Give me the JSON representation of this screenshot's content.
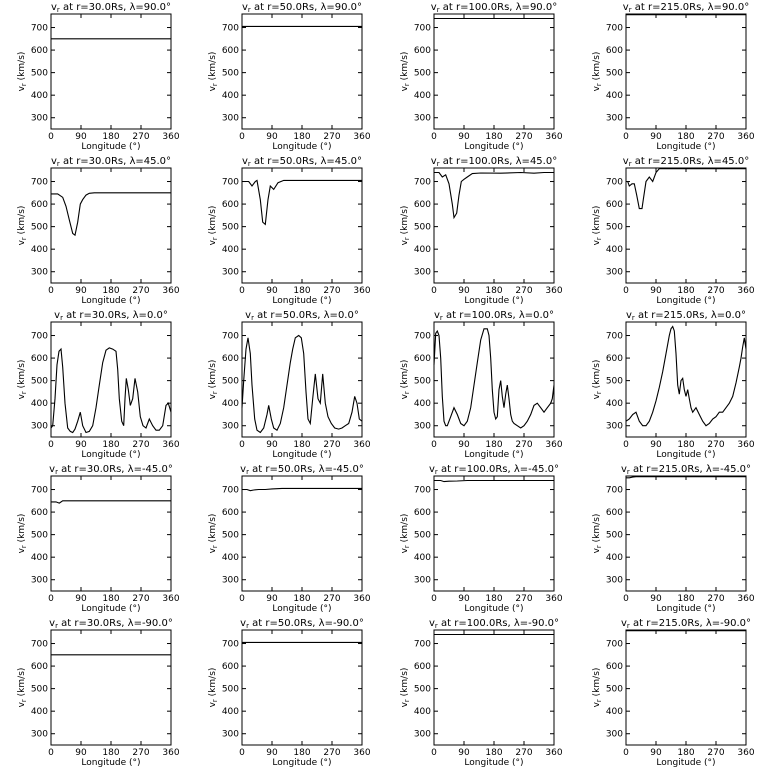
{
  "chart_data": {
    "type": "line",
    "layout": "grid",
    "xlabel": "Longitude (°)",
    "ylabel_prefix": "v",
    "ylabel_sub": "r",
    "ylabel_suffix": " (km/s)",
    "xlim": [
      0,
      360
    ],
    "ylim": [
      250,
      760
    ],
    "xticks": [
      0,
      90,
      180,
      270,
      360
    ],
    "yticks": [
      300,
      400,
      500,
      600,
      700
    ],
    "columns": [
      {
        "title_suffix": " at r=30.0Rs, "
      },
      {
        "title_suffix": " at r=50.0Rs, "
      },
      {
        "title_suffix": " at r=100.0Rs, "
      },
      {
        "title_suffix": " at r=215.0Rs, "
      }
    ],
    "rows": [
      {
        "title_lat": "λ=90.0°"
      },
      {
        "title_lat": "λ=45.0°"
      },
      {
        "title_lat": "λ=0.0°"
      },
      {
        "title_lat": "λ=-45.0°"
      },
      {
        "title_lat": "λ=-90.0°"
      }
    ],
    "panels": [
      [
        {
          "x": [
            0,
            360
          ],
          "y": [
            650,
            650
          ]
        },
        {
          "x": [
            0,
            360
          ],
          "y": [
            705,
            705
          ]
        },
        {
          "x": [
            0,
            360
          ],
          "y": [
            740,
            740
          ]
        },
        {
          "x": [
            0,
            360
          ],
          "y": [
            757,
            757
          ]
        }
      ],
      [
        {
          "x": [
            0,
            20,
            35,
            45,
            55,
            65,
            72,
            80,
            88,
            95,
            105,
            115,
            130,
            360
          ],
          "y": [
            645,
            645,
            630,
            590,
            530,
            470,
            462,
            520,
            600,
            620,
            640,
            648,
            650,
            650
          ]
        },
        {
          "x": [
            0,
            20,
            30,
            40,
            45,
            55,
            62,
            70,
            78,
            85,
            95,
            108,
            125,
            360
          ],
          "y": [
            700,
            700,
            680,
            700,
            705,
            620,
            520,
            510,
            620,
            680,
            665,
            695,
            705,
            705
          ]
        },
        {
          "x": [
            0,
            15,
            25,
            35,
            45,
            55,
            60,
            68,
            75,
            82,
            90,
            100,
            115,
            140,
            200,
            260,
            300,
            330,
            360
          ],
          "y": [
            740,
            740,
            720,
            730,
            690,
            600,
            540,
            560,
            640,
            700,
            710,
            720,
            735,
            738,
            737,
            740,
            737,
            740,
            740
          ]
        },
        {
          "x": [
            0,
            5,
            10,
            18,
            25,
            32,
            40,
            48,
            52,
            60,
            70,
            80,
            90,
            100,
            110,
            360
          ],
          "y": [
            700,
            700,
            680,
            690,
            690,
            640,
            580,
            580,
            620,
            700,
            720,
            700,
            740,
            757,
            757,
            757
          ]
        }
      ],
      [
        {
          "x": [
            0,
            5,
            12,
            18,
            24,
            30,
            35,
            42,
            50,
            58,
            65,
            72,
            80,
            88,
            95,
            105,
            115,
            125,
            135,
            145,
            155,
            165,
            175,
            185,
            195,
            200,
            205,
            212,
            218,
            222,
            226,
            232,
            238,
            245,
            252,
            260,
            268,
            276,
            285,
            295,
            305,
            315,
            325,
            335,
            345,
            352,
            358,
            360
          ],
          "y": [
            290,
            300,
            420,
            570,
            630,
            640,
            560,
            400,
            290,
            275,
            270,
            285,
            320,
            360,
            300,
            270,
            275,
            300,
            380,
            480,
            580,
            635,
            645,
            640,
            630,
            550,
            420,
            320,
            300,
            420,
            510,
            460,
            390,
            420,
            510,
            450,
            340,
            300,
            290,
            330,
            300,
            280,
            280,
            300,
            390,
            400,
            370,
            360
          ]
        },
        {
          "x": [
            0,
            5,
            12,
            18,
            25,
            30,
            38,
            45,
            55,
            65,
            75,
            80,
            88,
            95,
            105,
            115,
            125,
            135,
            145,
            152,
            160,
            170,
            178,
            185,
            192,
            198,
            205,
            212,
            220,
            228,
            235,
            242,
            250,
            258,
            268,
            278,
            290,
            300,
            310,
            320,
            330,
            338,
            345,
            352,
            360
          ],
          "y": [
            380,
            500,
            640,
            690,
            620,
            480,
            330,
            280,
            270,
            290,
            350,
            390,
            330,
            290,
            280,
            310,
            380,
            480,
            580,
            640,
            690,
            700,
            690,
            620,
            450,
            330,
            310,
            420,
            530,
            420,
            400,
            530,
            400,
            340,
            310,
            290,
            285,
            290,
            300,
            310,
            360,
            430,
            400,
            330,
            320
          ]
        },
        {
          "x": [
            0,
            5,
            10,
            15,
            20,
            25,
            30,
            35,
            40,
            50,
            60,
            70,
            80,
            90,
            100,
            110,
            120,
            130,
            140,
            150,
            160,
            165,
            170,
            175,
            180,
            185,
            190,
            195,
            200,
            205,
            210,
            215,
            220,
            225,
            230,
            235,
            240,
            250,
            260,
            270,
            280,
            290,
            300,
            310,
            320,
            330,
            340,
            350,
            355,
            360
          ],
          "y": [
            570,
            710,
            720,
            700,
            600,
            430,
            320,
            300,
            300,
            340,
            380,
            350,
            310,
            300,
            320,
            380,
            480,
            580,
            680,
            730,
            730,
            700,
            600,
            460,
            360,
            330,
            340,
            460,
            500,
            430,
            380,
            440,
            480,
            420,
            350,
            320,
            310,
            300,
            290,
            300,
            320,
            350,
            390,
            400,
            380,
            360,
            380,
            400,
            420,
            480
          ]
        },
        {
          "x": [
            0,
            10,
            20,
            30,
            40,
            50,
            60,
            70,
            80,
            90,
            100,
            110,
            120,
            130,
            135,
            140,
            145,
            150,
            155,
            160,
            165,
            170,
            175,
            180,
            185,
            190,
            195,
            200,
            210,
            220,
            230,
            240,
            250,
            260,
            270,
            280,
            290,
            300,
            310,
            320,
            330,
            340,
            345,
            350,
            355,
            360
          ],
          "y": [
            320,
            330,
            350,
            360,
            320,
            300,
            300,
            320,
            360,
            410,
            470,
            540,
            620,
            700,
            730,
            740,
            720,
            620,
            480,
            440,
            500,
            510,
            460,
            430,
            460,
            420,
            380,
            360,
            380,
            350,
            320,
            300,
            310,
            330,
            340,
            360,
            360,
            380,
            400,
            430,
            490,
            560,
            600,
            650,
            690,
            640
          ]
        }
      ],
      [
        {
          "x": [
            0,
            15,
            25,
            35,
            360
          ],
          "y": [
            645,
            645,
            640,
            650,
            650
          ]
        },
        {
          "x": [
            0,
            15,
            25,
            35,
            50,
            70,
            90,
            120,
            360
          ],
          "y": [
            700,
            700,
            695,
            698,
            700,
            700,
            703,
            705,
            705
          ]
        },
        {
          "x": [
            0,
            20,
            30,
            45,
            70,
            100,
            360
          ],
          "y": [
            740,
            740,
            735,
            737,
            738,
            740,
            740
          ]
        },
        {
          "x": [
            0,
            10,
            20,
            30,
            360
          ],
          "y": [
            752,
            752,
            755,
            757,
            757
          ]
        }
      ],
      [
        {
          "x": [
            0,
            360
          ],
          "y": [
            650,
            650
          ]
        },
        {
          "x": [
            0,
            360
          ],
          "y": [
            705,
            705
          ]
        },
        {
          "x": [
            0,
            360
          ],
          "y": [
            740,
            740
          ]
        },
        {
          "x": [
            0,
            360
          ],
          "y": [
            757,
            757
          ]
        }
      ]
    ]
  }
}
